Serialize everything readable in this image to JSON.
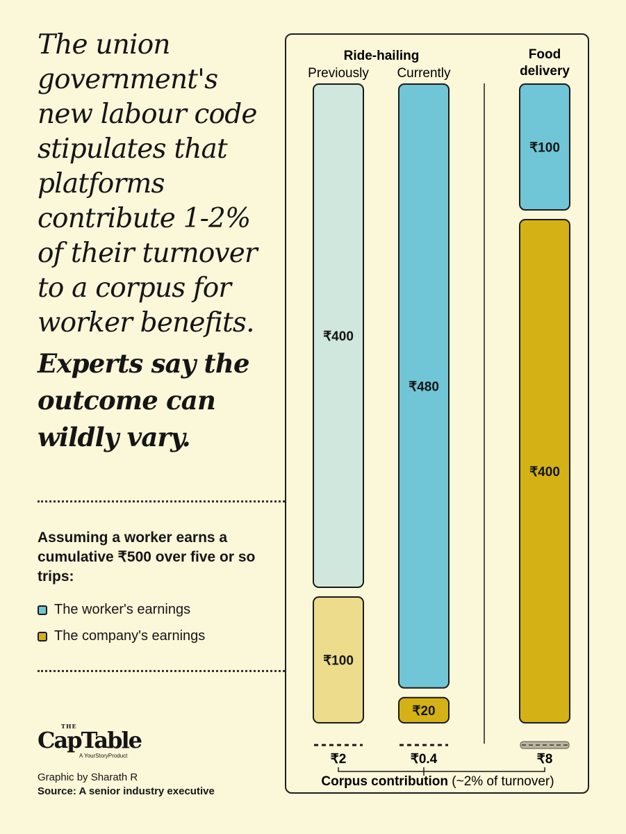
{
  "headline": "The union government's new labour code stipulates that platforms contribute 1-2% of their turnover to a corpus for worker benefits.",
  "headline_emphasis": "Experts say the outcome can wildly vary.",
  "assumption": "Assuming a worker earns a cumulative ₹500 over five or so trips:",
  "legend": [
    {
      "label": "The worker's earnings",
      "color": "#70c6d6"
    },
    {
      "label": "The company's earnings",
      "color": "#d4b215"
    }
  ],
  "logo": {
    "the": "THE",
    "name": "CapTable",
    "tagline": "A YourStoryProduct"
  },
  "credit": "Graphic by Sharath R",
  "source": "Source: A senior industry executive",
  "chart_data": {
    "type": "bar",
    "stacked": true,
    "groups": [
      {
        "name": "Ride-hailing",
        "subcategories": [
          "Previously",
          "Currently"
        ]
      },
      {
        "name": "Food delivery",
        "subcategories": []
      }
    ],
    "categories": [
      "Previously",
      "Currently",
      "Food delivery"
    ],
    "series": [
      {
        "name": "The worker's earnings",
        "values": [
          400,
          480,
          100
        ],
        "labels": [
          "₹400",
          "₹480",
          "₹100"
        ]
      },
      {
        "name": "The company's earnings",
        "values": [
          100,
          20,
          400
        ],
        "labels": [
          "₹100",
          "₹20",
          "₹400"
        ]
      }
    ],
    "corpus": {
      "values": [
        2,
        0.4,
        8
      ],
      "labels": [
        "₹2",
        "₹0.4",
        "₹8"
      ],
      "title": "Corpus contribution",
      "title_note": "(~2% of turnover)"
    },
    "total": 500,
    "colors": {
      "previously_worker": "#cfe7dc",
      "previously_company": "#ecdc8c",
      "worker": "#70c6d6",
      "company": "#d4b215"
    },
    "legend_position": "left"
  }
}
